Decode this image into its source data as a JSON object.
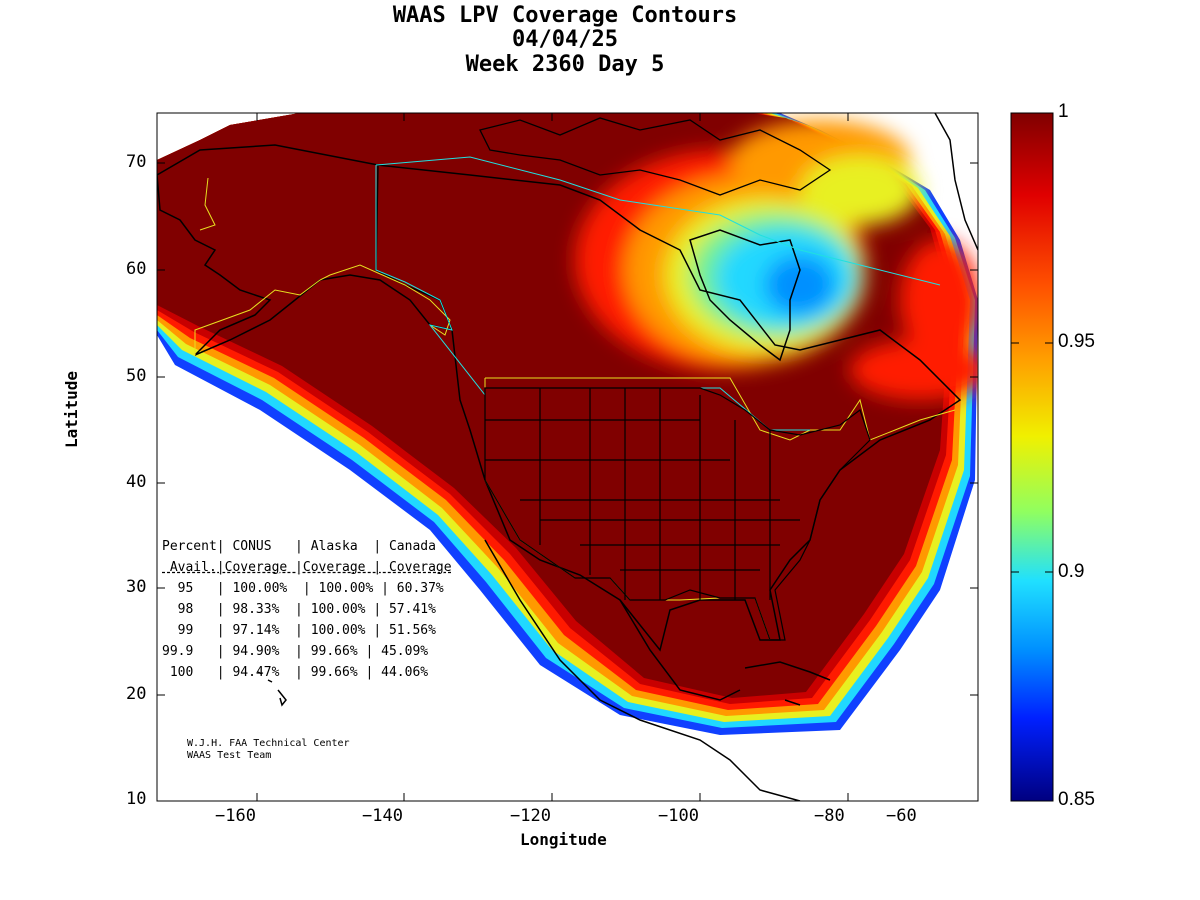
{
  "title_lines": [
    "WAAS LPV Coverage Contours",
    "04/04/25",
    "Week 2360 Day 5"
  ],
  "xlabel": "Longitude",
  "ylabel": "Latitude",
  "x_ticks": [
    "−160",
    "−140",
    "−120",
    "−100",
    "−80",
    "−60"
  ],
  "y_ticks": [
    "10",
    "20",
    "30",
    "40",
    "50",
    "60",
    "70"
  ],
  "colorbar": {
    "ticks": [
      "1",
      "0.95",
      "0.9",
      "0.85"
    ],
    "range": [
      0.85,
      1
    ]
  },
  "table": {
    "header1": "Percent| CONUS   | Alaska  | Canada",
    "header2": " Avail.|Coverage |Coverage | Coverage",
    "rows": [
      "  95   | 100.00%  | 100.00% | 60.37%",
      "  98   | 98.33%  | 100.00% | 57.41%",
      "  99   | 97.14%  | 100.00% | 51.56%",
      "99.9   | 94.90%  | 99.66% | 45.09%",
      " 100   | 94.47%  | 99.66% | 44.06%"
    ]
  },
  "credit": [
    "W.J.H. FAA Technical Center",
    "WAAS Test Team"
  ],
  "colors": {
    "full": "#800000",
    "red": "#ff1a00",
    "orange": "#ff9900",
    "yellow": "#e8f020",
    "cyan": "#20d8ff",
    "blue": "#1060ff",
    "deep_blue": "#000090"
  }
}
